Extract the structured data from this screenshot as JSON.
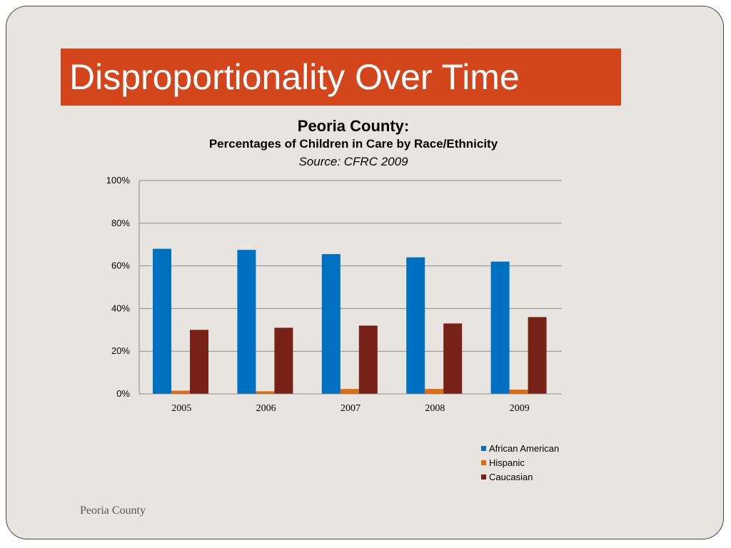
{
  "slide": {
    "title": "Disproportionality Over Time",
    "footer": "Peoria County"
  },
  "colors": {
    "title_bar": "#d3451a",
    "background": "#e8e5e0"
  },
  "chart_data": {
    "type": "bar",
    "title": "Peoria County:",
    "subtitle": "Percentages of Children in Care by Race/Ethnicity",
    "source": "Source:  CFRC 2009",
    "categories": [
      "2005",
      "2006",
      "2007",
      "2008",
      "2009"
    ],
    "series": [
      {
        "name": "African American",
        "color": "#0070c0",
        "values": [
          68,
          67.5,
          65.5,
          64,
          62
        ]
      },
      {
        "name": "Hispanic",
        "color": "#e36c0a",
        "values": [
          1.5,
          1.2,
          2.3,
          2.3,
          2.0
        ]
      },
      {
        "name": "Caucasian",
        "color": "#772118",
        "values": [
          30,
          31,
          32,
          33,
          36
        ]
      }
    ],
    "ylim": [
      0,
      100
    ],
    "yticks": [
      "0%",
      "20%",
      "40%",
      "60%",
      "80%",
      "100%"
    ],
    "grid": true,
    "legend": "bottom-right"
  }
}
